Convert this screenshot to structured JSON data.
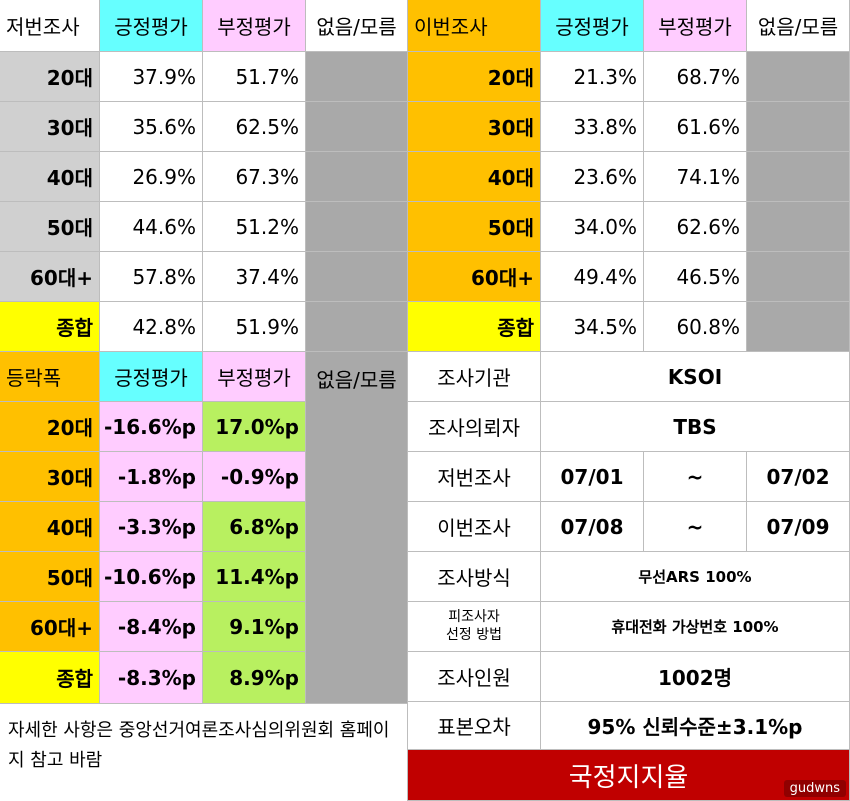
{
  "prev": {
    "title": "저번조사",
    "headers": [
      "긍정평가",
      "부정평가",
      "없음/모름"
    ],
    "rows": [
      {
        "label": "20대",
        "pos": "37.9%",
        "neg": "51.7%",
        "none": ""
      },
      {
        "label": "30대",
        "pos": "35.6%",
        "neg": "62.5%",
        "none": ""
      },
      {
        "label": "40대",
        "pos": "26.9%",
        "neg": "67.3%",
        "none": ""
      },
      {
        "label": "50대",
        "pos": "44.6%",
        "neg": "51.2%",
        "none": ""
      },
      {
        "label": "60대+",
        "pos": "57.8%",
        "neg": "37.4%",
        "none": ""
      },
      {
        "label": "종합",
        "pos": "42.8%",
        "neg": "51.9%",
        "none": ""
      }
    ]
  },
  "curr": {
    "title": "이번조사",
    "headers": [
      "긍정평가",
      "부정평가",
      "없음/모름"
    ],
    "rows": [
      {
        "label": "20대",
        "pos": "21.3%",
        "neg": "68.7%",
        "none": ""
      },
      {
        "label": "30대",
        "pos": "33.8%",
        "neg": "61.6%",
        "none": ""
      },
      {
        "label": "40대",
        "pos": "23.6%",
        "neg": "74.1%",
        "none": ""
      },
      {
        "label": "50대",
        "pos": "34.0%",
        "neg": "62.6%",
        "none": ""
      },
      {
        "label": "60대+",
        "pos": "49.4%",
        "neg": "46.5%",
        "none": ""
      },
      {
        "label": "종합",
        "pos": "34.5%",
        "neg": "60.8%",
        "none": ""
      }
    ]
  },
  "change": {
    "title": "등락폭",
    "headers": [
      "긍정평가",
      "부정평가",
      "없음/모름"
    ],
    "rows": [
      {
        "label": "20대",
        "pos": "-16.6%p",
        "neg": "17.0%p"
      },
      {
        "label": "30대",
        "pos": "-1.8%p",
        "neg": "-0.9%p"
      },
      {
        "label": "40대",
        "pos": "-3.3%p",
        "neg": "6.8%p"
      },
      {
        "label": "50대",
        "pos": "-10.6%p",
        "neg": "11.4%p"
      },
      {
        "label": "60대+",
        "pos": "-8.4%p",
        "neg": "9.1%p"
      },
      {
        "label": "종합",
        "pos": "-8.3%p",
        "neg": "8.9%p"
      }
    ]
  },
  "info": {
    "agency_label": "조사기관",
    "agency": "KSOI",
    "client_label": "조사의뢰자",
    "client": "TBS",
    "prev_label": "저번조사",
    "prev_from": "07/01",
    "prev_sep": "~",
    "prev_to": "07/02",
    "curr_label": "이번조사",
    "curr_from": "07/08",
    "curr_sep": "~",
    "curr_to": "07/09",
    "method_label": "조사방식",
    "method": "무선ARS 100%",
    "selection_label_1": "피조사자",
    "selection_label_2": "선정 방법",
    "selection": "휴대전화 가상번호 100%",
    "size_label": "조사인원",
    "size": "1002명",
    "error_label": "표본오차",
    "error": "95% 신뢰수준±3.1%p"
  },
  "note": "자세한 사항은 중앙선거여론조사심의위원회 홈페이지 참고 바람",
  "banner": "국정지지율",
  "watermark": "gudwns"
}
